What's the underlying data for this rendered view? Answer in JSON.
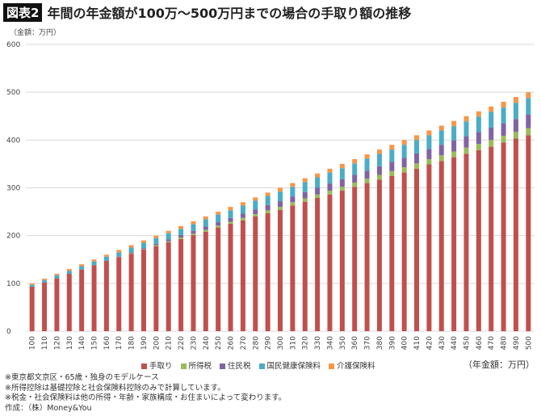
{
  "header": {
    "badge": "図表2",
    "title": "年間の年金額が100万～500万円までの場合の手取り額の推移"
  },
  "chart_data": {
    "type": "bar",
    "stacked": true,
    "unit_label": "（金額：万円）",
    "xlabel": "（年金額：万円）",
    "ylim": [
      0,
      600
    ],
    "yticks": [
      0,
      100,
      200,
      300,
      400,
      500,
      600
    ],
    "grid": true,
    "legend_position": "bottom",
    "categories": [
      100,
      110,
      120,
      130,
      140,
      150,
      160,
      170,
      180,
      190,
      200,
      210,
      220,
      230,
      240,
      250,
      260,
      270,
      280,
      290,
      300,
      310,
      320,
      330,
      340,
      350,
      360,
      370,
      380,
      390,
      400,
      410,
      420,
      430,
      440,
      450,
      460,
      470,
      480,
      490,
      500
    ],
    "series": [
      {
        "name": "手取り",
        "color": "#c0504d",
        "values": [
          93,
          102,
          111,
          120,
          129,
          138,
          147,
          155,
          162,
          171,
          178,
          186,
          193,
          201,
          208,
          217,
          225,
          232,
          240,
          247,
          254,
          263,
          271,
          279,
          286,
          294,
          302,
          310,
          317,
          325,
          332,
          340,
          349,
          356,
          364,
          371,
          379,
          386,
          395,
          403,
          410
        ]
      },
      {
        "name": "所得税",
        "color": "#9bbb59",
        "values": [
          0,
          0,
          0,
          0,
          0,
          0,
          0,
          0,
          1,
          1,
          2,
          2,
          3,
          3,
          4,
          4,
          4,
          5,
          5,
          6,
          6,
          7,
          7,
          7,
          8,
          8,
          9,
          9,
          10,
          10,
          11,
          11,
          11,
          12,
          12,
          13,
          13,
          14,
          14,
          14,
          15
        ]
      },
      {
        "name": "住民税",
        "color": "#8064a2",
        "values": [
          0,
          0,
          0,
          0,
          0,
          0,
          0,
          1,
          2,
          2,
          3,
          4,
          5,
          6,
          7,
          7,
          8,
          9,
          10,
          11,
          12,
          12,
          13,
          14,
          15,
          16,
          16,
          17,
          18,
          19,
          20,
          21,
          21,
          22,
          23,
          24,
          25,
          26,
          26,
          27,
          28
        ]
      },
      {
        "name": "国民健康保険料",
        "color": "#4bacc6",
        "values": [
          4,
          5,
          6,
          6,
          7,
          8,
          9,
          9,
          10,
          11,
          12,
          13,
          13,
          14,
          15,
          16,
          16,
          17,
          18,
          19,
          20,
          20,
          21,
          22,
          23,
          23,
          24,
          25,
          26,
          26,
          27,
          28,
          29,
          30,
          30,
          31,
          32,
          33,
          33,
          34,
          35
        ]
      },
      {
        "name": "介護保険料",
        "color": "#f79646",
        "values": [
          3,
          3,
          3,
          4,
          4,
          4,
          4,
          5,
          5,
          5,
          5,
          5,
          6,
          6,
          6,
          6,
          7,
          7,
          7,
          7,
          8,
          8,
          8,
          8,
          8,
          9,
          9,
          9,
          9,
          10,
          10,
          10,
          10,
          10,
          11,
          11,
          11,
          11,
          12,
          12,
          12
        ]
      }
    ]
  },
  "notes": [
    "※東京都文京区・65歳・独身のモデルケース",
    "※所得控除は基礎控除と社会保険料控除のみで計算しています。",
    "※税金・社会保険料は他の所得・年齢・家族構成・お住まいによって変わります。",
    "作成：（株）Money&You"
  ]
}
